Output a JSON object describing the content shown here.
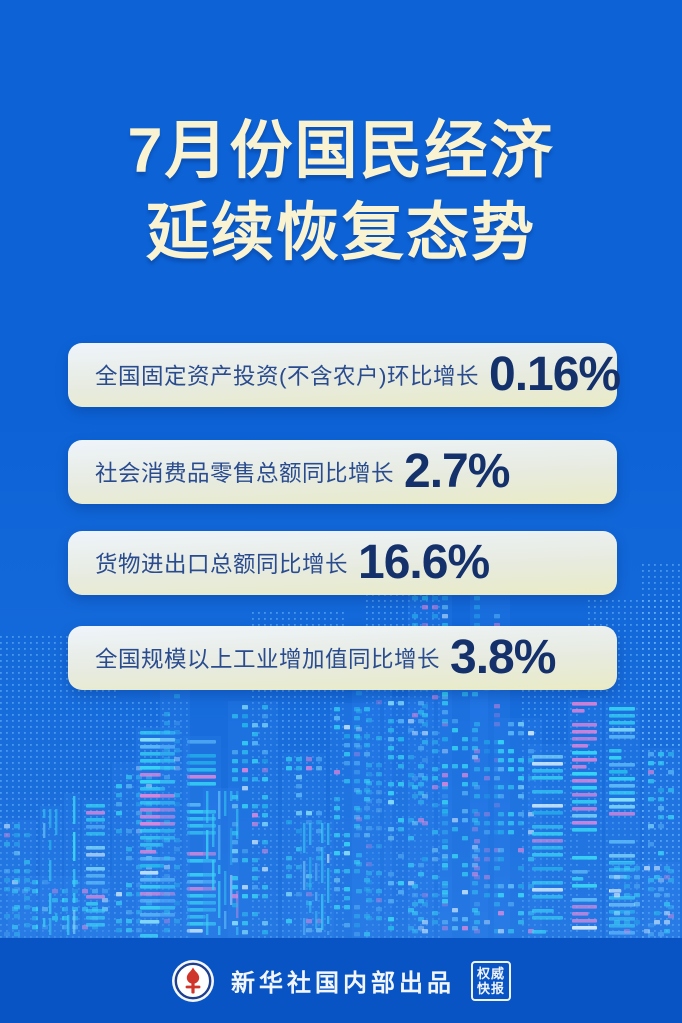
{
  "title": {
    "line1": "7月份国民经济",
    "line2": "延续恢复态势"
  },
  "cards": [
    {
      "label": "全国固定资产投资(不含农户)环比增长",
      "value": "0.16%"
    },
    {
      "label": "社会消费品零售总额同比增长",
      "value": "2.7%"
    },
    {
      "label": "货物进出口总额同比增长",
      "value": "16.6%"
    },
    {
      "label": "全国规模以上工业增加值同比增长",
      "value": "3.8%"
    }
  ],
  "footer": {
    "publisher": "新华社国内部出品",
    "logo_icon": "xinhua-emblem-icon",
    "stamp": {
      "line1": "权威",
      "line2": "快报"
    }
  },
  "colors": {
    "background": "#0d63d6",
    "footer_band": "#0854c5",
    "title_text": "#faf3d1",
    "card_gradient_top": "#eef4fb",
    "card_gradient_bottom": "#e9ebc6",
    "card_label": "#2a4c8f",
    "card_value": "#14316b",
    "window_cyan": "#2fd9f2",
    "window_pink": "#f07fd4",
    "window_blue": "#59b9f6"
  },
  "chart_data": {
    "type": "table",
    "title": "7月份国民经济延续恢复态势",
    "categories": [
      "全国固定资产投资(不含农户)环比增长",
      "社会消费品零售总额同比增长",
      "货物进出口总额同比增长",
      "全国规模以上工业增加值同比增长"
    ],
    "values": [
      0.16,
      2.7,
      16.6,
      3.8
    ],
    "unit": "%"
  }
}
